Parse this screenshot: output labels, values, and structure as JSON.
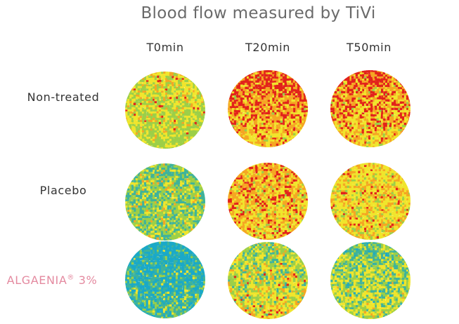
{
  "title": "Blood flow measured by TiVi",
  "columns": [
    "T0min",
    "T20min",
    "T50min"
  ],
  "rows": [
    {
      "label": "Non-treated",
      "highlight": false
    },
    {
      "label": "Placebo",
      "highlight": false
    },
    {
      "label": "ALGAENIA",
      "label_mark": "®",
      "label_suffix": " 3%",
      "highlight": true
    }
  ],
  "colors": {
    "title": "#6a6a6a",
    "label": "#333333",
    "highlight_label": "#e48aa0",
    "scale": [
      "#1aa9c8",
      "#3fb39a",
      "#9ccf48",
      "#f0e52c",
      "#f5a623",
      "#e2231a"
    ]
  }
}
